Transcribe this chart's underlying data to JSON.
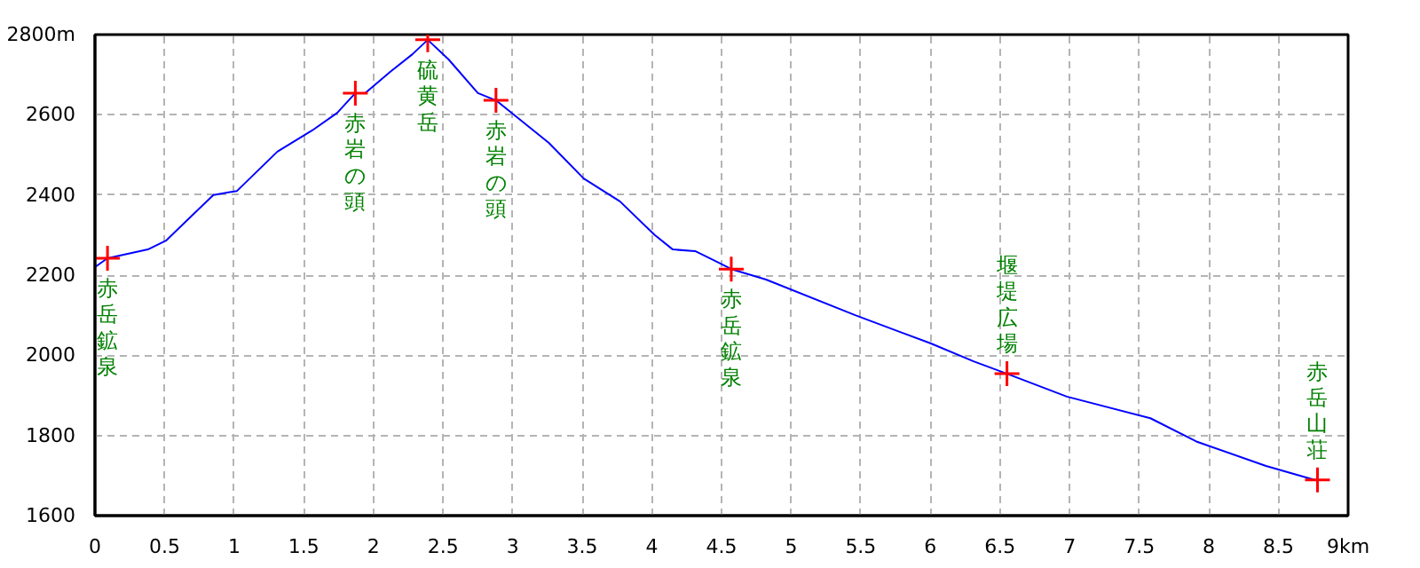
{
  "chart_data": {
    "type": "line",
    "x": [
      0,
      0.09,
      0.38,
      0.51,
      0.85,
      1.02,
      1.31,
      1.56,
      1.74,
      1.87,
      1.94,
      2.12,
      2.28,
      2.39,
      2.54,
      2.75,
      2.88,
      3.26,
      3.51,
      3.77,
      4.02,
      4.15,
      4.31,
      4.44,
      4.57,
      4.82,
      5.46,
      6.0,
      6.31,
      6.55,
      6.98,
      7.58,
      7.91,
      8.41,
      8.76
    ],
    "series": [
      {
        "color": "#0000ff",
        "values": [
          2220,
          2242,
          2264,
          2286,
          2400,
          2410,
          2508,
          2561,
          2605,
          2654,
          2654,
          2707,
          2751,
          2787,
          2738,
          2654,
          2636,
          2530,
          2441,
          2384,
          2300,
          2264,
          2260,
          2238,
          2215,
          2189,
          2100,
          2030,
          1985,
          1954,
          1897,
          1843,
          1785,
          1724,
          1689
        ]
      },
      {
        "type": "scatter",
        "marker": "cross",
        "color": "#ff0000",
        "x": [
          0.09,
          1.87,
          2.39,
          2.88,
          4.57,
          6.55,
          8.78
        ],
        "values": [
          2242,
          2654,
          2787,
          2636,
          2215,
          1954,
          1689
        ]
      }
    ],
    "annotations": [
      {
        "text": "赤岳鉱泉",
        "x": 0.09,
        "y": 2242
      },
      {
        "text": "赤岩の頭",
        "x": 1.87,
        "y": 2654
      },
      {
        "text": "硫黄岳",
        "x": 2.39,
        "y": 2787
      },
      {
        "text": "赤岩の頭",
        "x": 2.88,
        "y": 2636
      },
      {
        "text": "赤岳鉱泉",
        "x": 4.57,
        "y": 2215
      },
      {
        "text": "堰堤広場",
        "x": 6.55,
        "y": 1954
      },
      {
        "text": "赤岳山荘",
        "x": 8.78,
        "y": 1689
      }
    ],
    "xlim": [
      0,
      9
    ],
    "ylim": [
      1600,
      2800
    ],
    "xticks": [
      0,
      0.5,
      1,
      1.5,
      2,
      2.5,
      3,
      3.5,
      4,
      4.5,
      5,
      5.5,
      6,
      6.5,
      7,
      7.5,
      8,
      8.5,
      {
        "value": 9,
        "label": "9km"
      }
    ],
    "yticks": [
      1600,
      1800,
      2000,
      2200,
      2400,
      2600,
      {
        "value": 2800,
        "label": "2800m"
      }
    ],
    "grid": true
  }
}
